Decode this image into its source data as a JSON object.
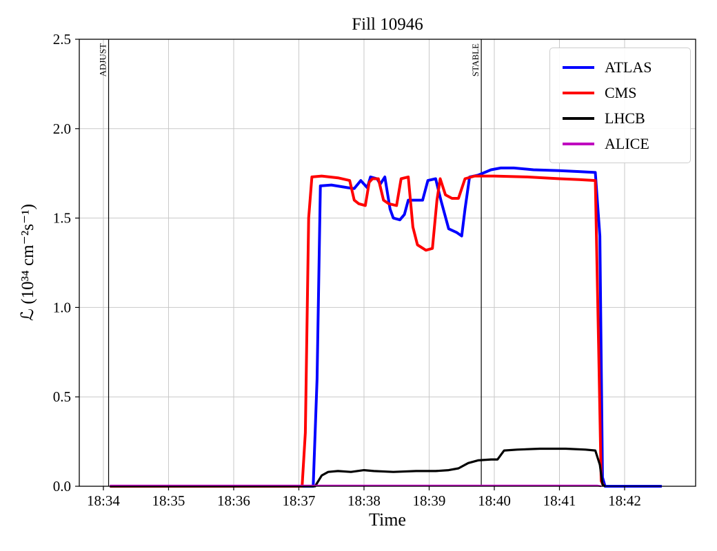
{
  "chart_data": {
    "type": "line",
    "title": "Fill 10946",
    "xlabel": "Time",
    "ylabel": "ℒ (10³⁴ cm⁻²s⁻¹)",
    "x_unit": "minutes after 18:00",
    "xlim": [
      33.63,
      43.09
    ],
    "ylim": [
      0,
      2.5
    ],
    "grid": true,
    "grid_color": "#c8c8c8",
    "legend_position": "upper right",
    "xticks": [
      {
        "value": 34,
        "label": "18:34"
      },
      {
        "value": 35,
        "label": "18:35"
      },
      {
        "value": 36,
        "label": "18:36"
      },
      {
        "value": 37,
        "label": "18:37"
      },
      {
        "value": 38,
        "label": "18:38"
      },
      {
        "value": 39,
        "label": "18:39"
      },
      {
        "value": 40,
        "label": "18:40"
      },
      {
        "value": 41,
        "label": "18:41"
      },
      {
        "value": 42,
        "label": "18:42"
      }
    ],
    "yticks": [
      {
        "value": 0.0,
        "label": "0.0"
      },
      {
        "value": 0.5,
        "label": "0.5"
      },
      {
        "value": 1.0,
        "label": "1.0"
      },
      {
        "value": 1.5,
        "label": "1.5"
      },
      {
        "value": 2.0,
        "label": "2.0"
      },
      {
        "value": 2.5,
        "label": "2.5"
      }
    ],
    "vlines": [
      {
        "x": 34.08,
        "label": "ADJUST",
        "color": "#000000"
      },
      {
        "x": 39.8,
        "label": "STABLE",
        "color": "#000000"
      }
    ],
    "series": [
      {
        "name": "ATLAS",
        "color": "#0000ff",
        "lw": 4,
        "points": [
          [
            34.1,
            0.0
          ],
          [
            37.22,
            0.0
          ],
          [
            37.28,
            0.6
          ],
          [
            37.33,
            1.68
          ],
          [
            37.5,
            1.685
          ],
          [
            37.75,
            1.67
          ],
          [
            37.85,
            1.665
          ],
          [
            37.95,
            1.71
          ],
          [
            38.05,
            1.67
          ],
          [
            38.1,
            1.73
          ],
          [
            38.2,
            1.72
          ],
          [
            38.25,
            1.69
          ],
          [
            38.32,
            1.73
          ],
          [
            38.4,
            1.55
          ],
          [
            38.45,
            1.5
          ],
          [
            38.55,
            1.49
          ],
          [
            38.62,
            1.52
          ],
          [
            38.68,
            1.6
          ],
          [
            38.9,
            1.6
          ],
          [
            38.98,
            1.71
          ],
          [
            39.1,
            1.72
          ],
          [
            39.18,
            1.6
          ],
          [
            39.3,
            1.44
          ],
          [
            39.42,
            1.42
          ],
          [
            39.5,
            1.4
          ],
          [
            39.55,
            1.55
          ],
          [
            39.62,
            1.73
          ],
          [
            39.75,
            1.74
          ],
          [
            39.95,
            1.77
          ],
          [
            40.1,
            1.78
          ],
          [
            40.3,
            1.78
          ],
          [
            40.6,
            1.77
          ],
          [
            41.0,
            1.765
          ],
          [
            41.3,
            1.76
          ],
          [
            41.55,
            1.755
          ],
          [
            41.62,
            1.4
          ],
          [
            41.66,
            0.05
          ],
          [
            41.7,
            0.0
          ],
          [
            42.0,
            0.0
          ],
          [
            42.57,
            0.0
          ]
        ]
      },
      {
        "name": "CMS",
        "color": "#ff0000",
        "lw": 4,
        "points": [
          [
            34.1,
            0.0
          ],
          [
            37.05,
            0.0
          ],
          [
            37.1,
            0.3
          ],
          [
            37.15,
            1.5
          ],
          [
            37.2,
            1.73
          ],
          [
            37.35,
            1.735
          ],
          [
            37.6,
            1.725
          ],
          [
            37.78,
            1.71
          ],
          [
            37.85,
            1.6
          ],
          [
            37.92,
            1.58
          ],
          [
            38.02,
            1.57
          ],
          [
            38.08,
            1.7
          ],
          [
            38.13,
            1.72
          ],
          [
            38.22,
            1.72
          ],
          [
            38.3,
            1.6
          ],
          [
            38.38,
            1.58
          ],
          [
            38.5,
            1.57
          ],
          [
            38.57,
            1.72
          ],
          [
            38.68,
            1.73
          ],
          [
            38.75,
            1.45
          ],
          [
            38.82,
            1.35
          ],
          [
            38.95,
            1.32
          ],
          [
            39.05,
            1.33
          ],
          [
            39.12,
            1.6
          ],
          [
            39.17,
            1.72
          ],
          [
            39.25,
            1.63
          ],
          [
            39.35,
            1.61
          ],
          [
            39.45,
            1.61
          ],
          [
            39.55,
            1.72
          ],
          [
            39.7,
            1.735
          ],
          [
            40.0,
            1.735
          ],
          [
            40.5,
            1.73
          ],
          [
            41.0,
            1.72
          ],
          [
            41.3,
            1.715
          ],
          [
            41.55,
            1.71
          ],
          [
            41.6,
            0.8
          ],
          [
            41.64,
            0.03
          ],
          [
            41.68,
            0.0
          ]
        ]
      },
      {
        "name": "LHCB",
        "color": "#000000",
        "lw": 3.2,
        "points": [
          [
            34.1,
            0.0
          ],
          [
            37.25,
            0.0
          ],
          [
            37.35,
            0.06
          ],
          [
            37.45,
            0.08
          ],
          [
            37.6,
            0.085
          ],
          [
            37.8,
            0.08
          ],
          [
            38.0,
            0.09
          ],
          [
            38.15,
            0.085
          ],
          [
            38.45,
            0.08
          ],
          [
            38.8,
            0.085
          ],
          [
            39.1,
            0.085
          ],
          [
            39.3,
            0.09
          ],
          [
            39.45,
            0.1
          ],
          [
            39.6,
            0.13
          ],
          [
            39.75,
            0.145
          ],
          [
            39.95,
            0.15
          ],
          [
            40.05,
            0.15
          ],
          [
            40.15,
            0.2
          ],
          [
            40.35,
            0.205
          ],
          [
            40.7,
            0.21
          ],
          [
            41.1,
            0.21
          ],
          [
            41.4,
            0.205
          ],
          [
            41.55,
            0.2
          ],
          [
            41.62,
            0.12
          ],
          [
            41.66,
            0.01
          ],
          [
            41.7,
            0.0
          ]
        ]
      },
      {
        "name": "ALICE",
        "color": "#bf00bf",
        "lw": 2.5,
        "points": [
          [
            34.1,
            0.004
          ],
          [
            41.58,
            0.004
          ],
          [
            41.64,
            0.0
          ]
        ]
      }
    ]
  }
}
